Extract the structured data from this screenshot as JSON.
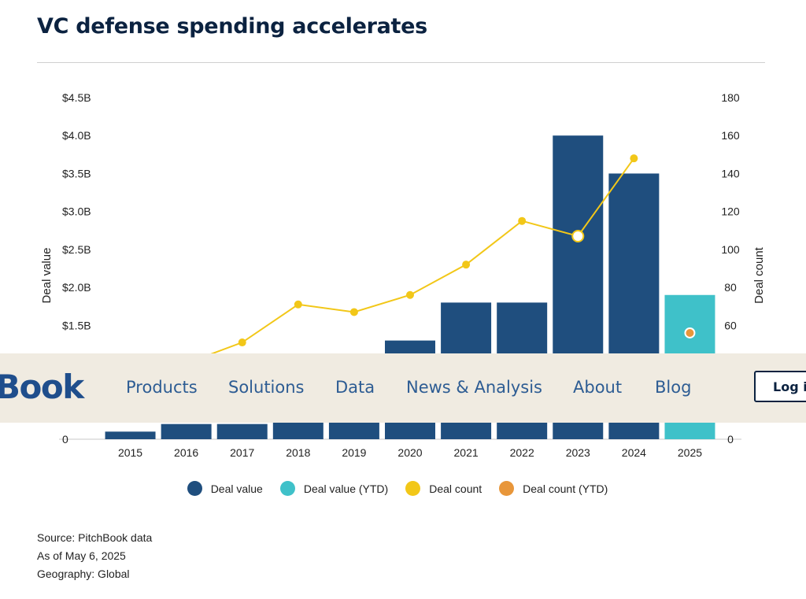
{
  "page_title": "VC defense spending accelerates",
  "chart_data": {
    "type": "bar",
    "title": "VC defense spending accelerates",
    "categories": [
      "2015",
      "2016",
      "2017",
      "2018",
      "2019",
      "2020",
      "2021",
      "2022",
      "2023",
      "2024",
      "2025"
    ],
    "y_left": {
      "label": "Deal value",
      "range": [
        0,
        4.5
      ],
      "unit": "billion USD",
      "tick_values": [
        0,
        0.5,
        1.0,
        1.5,
        2.0,
        2.5,
        3.0,
        3.5,
        4.0,
        4.5
      ],
      "tick_labels": [
        "0",
        "",
        "",
        "$1.5B",
        "$2.0B",
        "$2.5B",
        "$3.0B",
        "$3.5B",
        "$4.0B",
        "$4.5B"
      ]
    },
    "y_right": {
      "label": "Deal count",
      "range": [
        0,
        180
      ],
      "tick_values": [
        0,
        20,
        40,
        60,
        80,
        100,
        120,
        140,
        160,
        180
      ],
      "tick_labels": [
        "0",
        "",
        "",
        "60",
        "80",
        "100",
        "120",
        "140",
        "160",
        "180"
      ]
    },
    "series": [
      {
        "name": "Deal value",
        "kind": "bar",
        "axis": "left",
        "color": "#1f4e7e",
        "values": [
          0.1,
          0.2,
          0.2,
          0.22,
          0.22,
          1.3,
          1.8,
          1.8,
          4.0,
          3.5,
          null
        ]
      },
      {
        "name": "Deal value (YTD)",
        "kind": "bar",
        "axis": "left",
        "color": "#3fc1c9",
        "values": [
          null,
          null,
          null,
          null,
          null,
          null,
          null,
          null,
          null,
          null,
          1.9
        ]
      },
      {
        "name": "Deal count",
        "kind": "line",
        "axis": "right",
        "color": "#f2c718",
        "values": [
          null,
          40,
          51,
          71,
          67,
          76,
          92,
          115,
          107,
          148,
          null
        ]
      },
      {
        "name": "Deal count (YTD)",
        "kind": "point",
        "axis": "right",
        "color": "#e8963a",
        "values": [
          null,
          null,
          null,
          null,
          null,
          null,
          null,
          null,
          null,
          null,
          56
        ]
      }
    ],
    "highlighted_point": {
      "category": "2023",
      "series": "Deal count"
    },
    "legend_position": "bottom-center",
    "grid": false
  },
  "legend": [
    {
      "label": "Deal value",
      "color": "#1f4e7e"
    },
    {
      "label": "Deal value (YTD)",
      "color": "#3fc1c9"
    },
    {
      "label": "Deal count",
      "color": "#f2c718"
    },
    {
      "label": "Deal count (YTD)",
      "color": "#e8963a"
    }
  ],
  "source": {
    "line1": "Source: PitchBook data",
    "line2": "As of May 6, 2025",
    "line3": "Geography: Global"
  },
  "navbar": {
    "brand": "Book",
    "links": [
      "Products",
      "Solutions",
      "Data",
      "News & Analysis",
      "About",
      "Blog"
    ],
    "login": "Log in"
  }
}
